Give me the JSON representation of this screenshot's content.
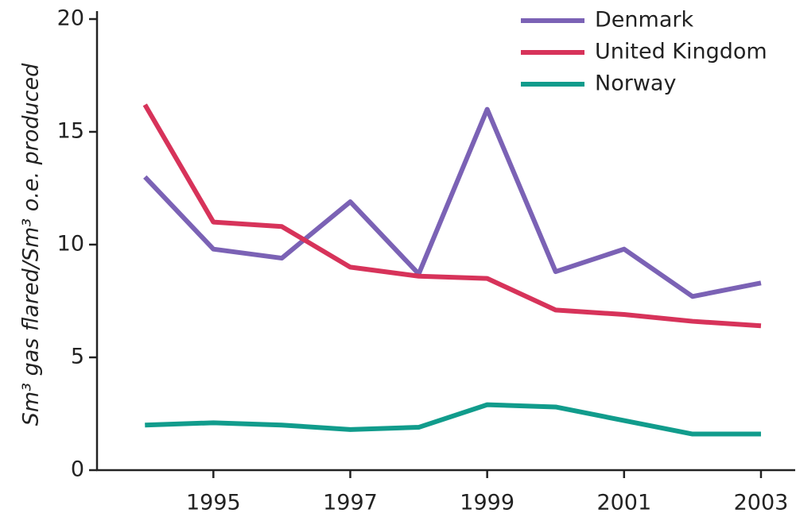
{
  "chart_data": {
    "type": "line",
    "ylabel": "Sm³ gas flared/Sm³ o.e. produced",
    "x": [
      1994,
      1995,
      1996,
      1997,
      1998,
      1999,
      2000,
      2001,
      2002,
      2003
    ],
    "series": [
      {
        "name": "Denmark",
        "color": "#7b62b5",
        "values": [
          13.0,
          9.8,
          9.4,
          11.9,
          8.7,
          16.0,
          8.8,
          9.8,
          7.7,
          8.3
        ]
      },
      {
        "name": "United Kingdom",
        "color": "#d7335a",
        "values": [
          16.2,
          11.0,
          10.8,
          9.0,
          8.6,
          8.5,
          7.1,
          6.9,
          6.6,
          6.4
        ]
      },
      {
        "name": "Norway",
        "color": "#119c8c",
        "values": [
          2.0,
          2.1,
          2.0,
          1.8,
          1.9,
          2.9,
          2.8,
          2.2,
          1.6,
          1.6
        ]
      }
    ],
    "xlim": [
      1993.3,
      2003.5
    ],
    "xticks": [
      1995,
      1997,
      1999,
      2001,
      2003
    ],
    "ylim": [
      0,
      20
    ],
    "yticks": [
      0,
      5,
      10,
      15,
      20
    ],
    "legend": "upper right"
  }
}
